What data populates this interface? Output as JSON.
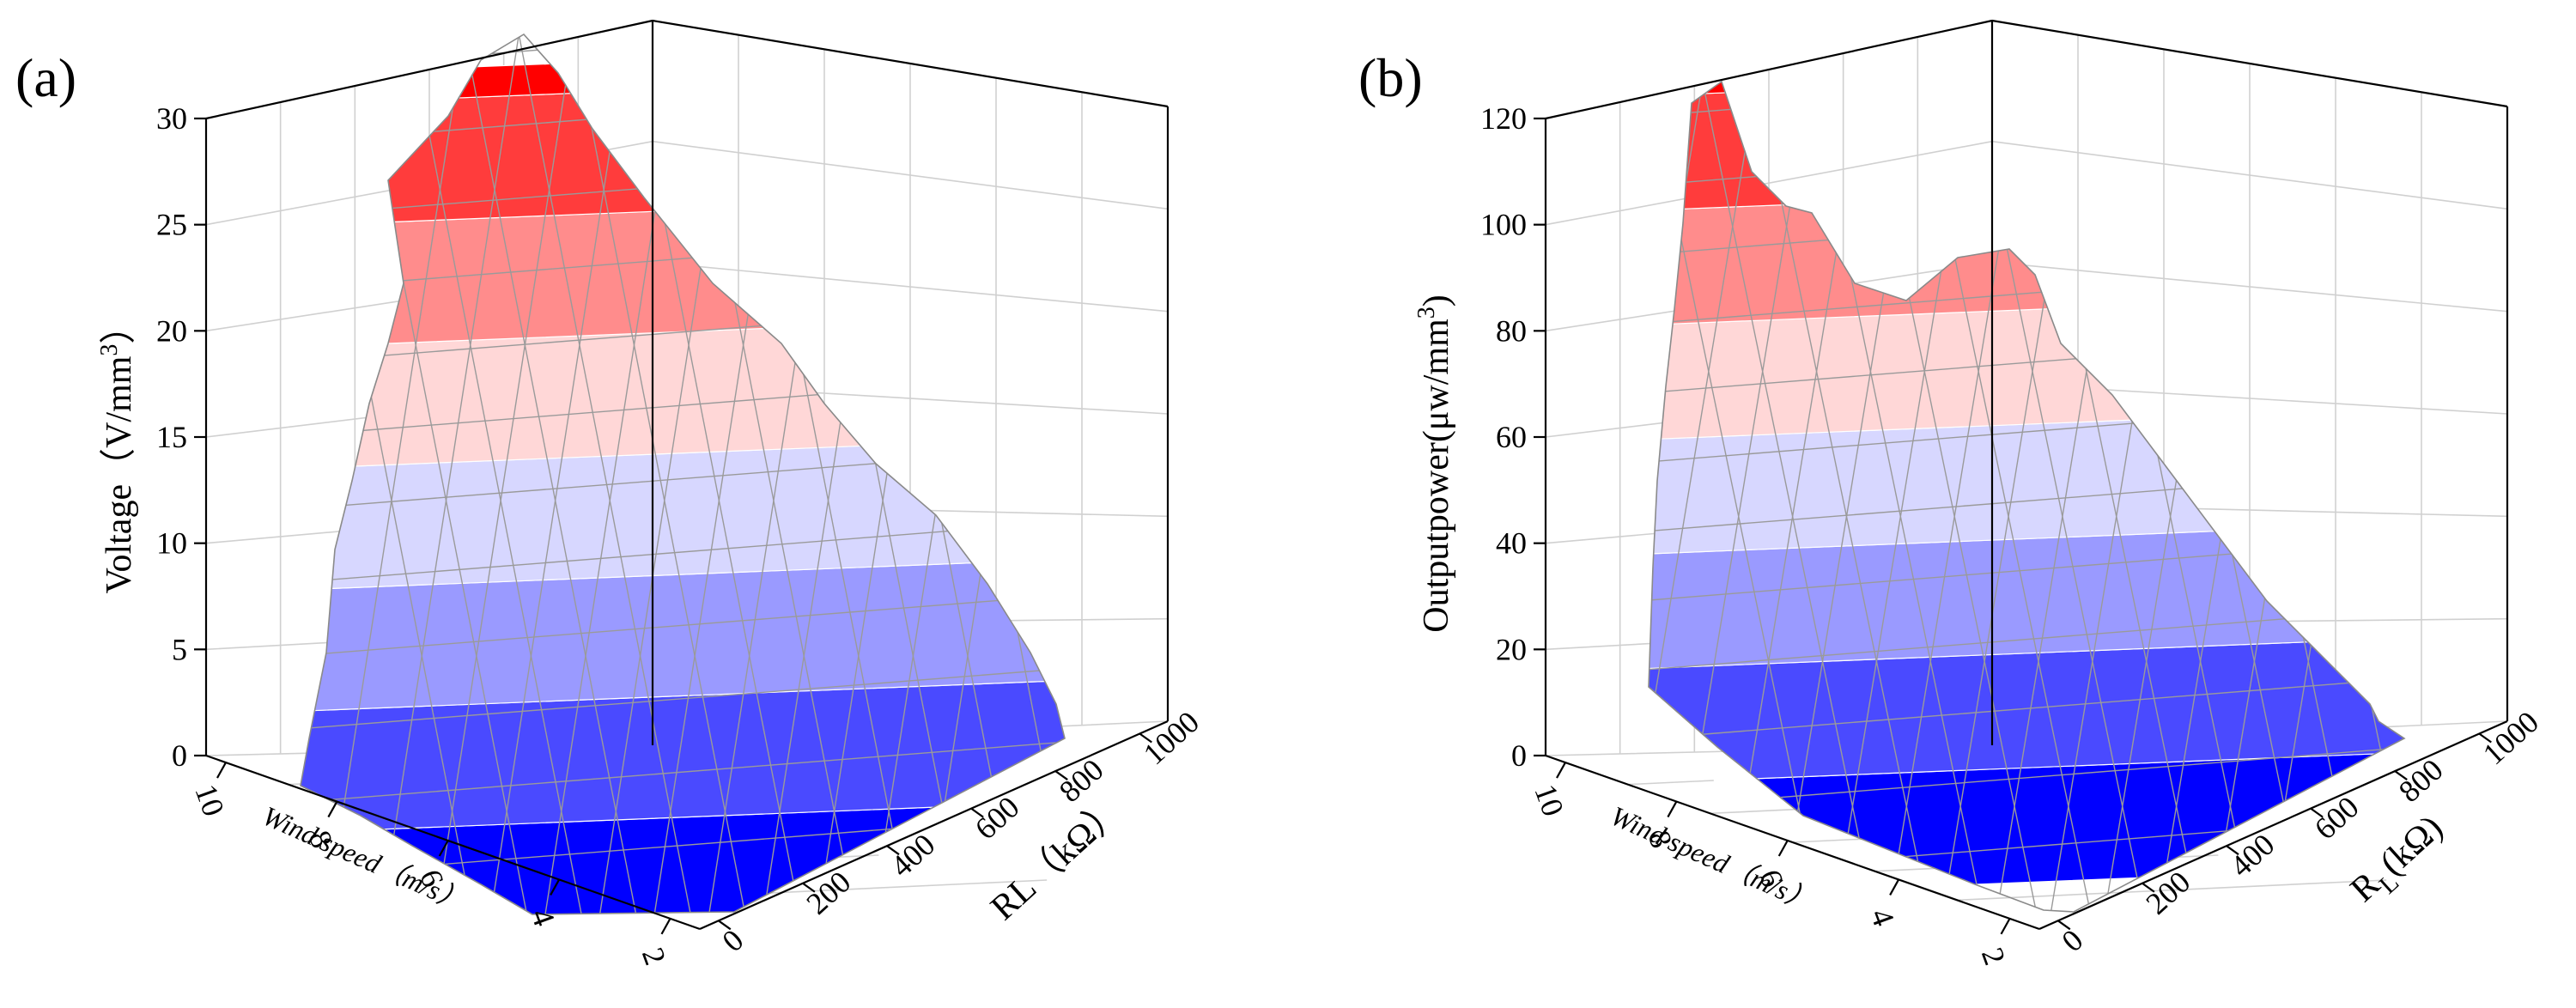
{
  "chart_data": [
    {
      "panel": "(a)",
      "type": "surface3d",
      "zlabel": "Voltage（V/mm³）",
      "zlabel_main": "Voltage（V/mm",
      "zlabel_sup": "3",
      "zlabel_end": "）",
      "xlabel": "Wind speed（m/s）",
      "ylabel": "RL（kΩ）",
      "zlim": [
        0,
        30
      ],
      "z_ticks": [
        "0",
        "5",
        "10",
        "15",
        "20",
        "25",
        "30"
      ],
      "x_ticks": [
        "2",
        "4",
        "6",
        "8",
        "10"
      ],
      "y_ticks": [
        "0",
        "200",
        "400",
        "600",
        "800",
        "1000"
      ],
      "colormap": [
        "#0000ff",
        "#4a4aff",
        "#9a9aff",
        "#d7d7ff",
        "#ffd7d7",
        "#ff8c8c",
        "#ff3c3c",
        "#ff0000"
      ],
      "peak_value": 29,
      "contour_levels": [
        0,
        4,
        8,
        12,
        16,
        20,
        24,
        28
      ]
    },
    {
      "panel": "(b)",
      "type": "surface3d",
      "zlabel": "Outputpower(μw/mm³)",
      "zlabel_main": "Outputpower(μw/mm",
      "zlabel_sup": "3",
      "zlabel_end": ")",
      "xlabel": "Wind speed（m/s）",
      "ylabel": "RL(kΩ)",
      "ylabel_main": "R",
      "ylabel_sub": "L",
      "ylabel_end": "(kΩ)",
      "zlim": [
        0,
        120
      ],
      "z_ticks": [
        "0",
        "20",
        "40",
        "60",
        "80",
        "100",
        "120"
      ],
      "x_ticks": [
        "2",
        "4",
        "6",
        "8",
        "10"
      ],
      "y_ticks": [
        "0",
        "200",
        "400",
        "600",
        "800",
        "1000"
      ],
      "colormap": [
        "#0000ff",
        "#4a4aff",
        "#9a9aff",
        "#d7d7ff",
        "#ffd7d7",
        "#ff8c8c",
        "#ff3c3c",
        "#ff0000"
      ],
      "peak_value": 116,
      "contour_levels": [
        0,
        16,
        32,
        48,
        64,
        80,
        96,
        112
      ]
    }
  ]
}
